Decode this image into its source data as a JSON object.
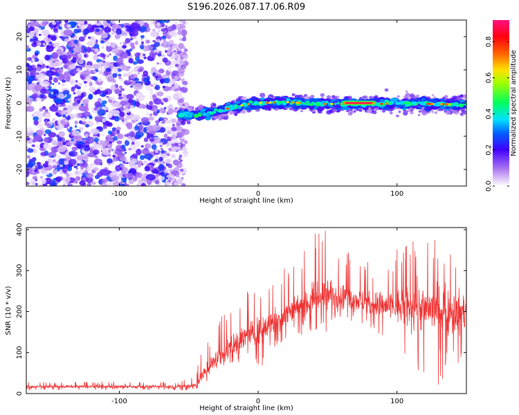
{
  "title": "S196.2026.087.17.06.R09",
  "chart_data": [
    {
      "type": "heatmap",
      "panel": "spectrogram",
      "xlabel": "Height of straight line (km)",
      "ylabel": "Frequency (Hz)",
      "xlim": [
        -167,
        150
      ],
      "ylim": [
        -25,
        25
      ],
      "xticks": [
        -100,
        0,
        100
      ],
      "xtick_labels": [
        "-100",
        "0",
        "100"
      ],
      "yticks": [
        -20,
        -10,
        0,
        10,
        20
      ],
      "ytick_labels": [
        "-20",
        "-10",
        "0",
        "10",
        "20"
      ],
      "colorbar": {
        "label": "Normalized spectral amplitude",
        "range": [
          0.0,
          0.92
        ],
        "ticks": [
          0.0,
          0.2,
          0.4,
          0.6,
          0.8
        ],
        "tick_labels": [
          "0.0",
          "0.2",
          "0.4",
          "0.6",
          "0.8"
        ],
        "colormap": "rainbow (white to purple to blue to cyan to green to yellow to red to magenta)"
      },
      "regions": [
        {
          "description": "diffuse purple noise",
          "x_range": [
            -167,
            -57
          ],
          "frequency_range": [
            -25,
            25
          ],
          "amplitude": "0.0-0.3"
        },
        {
          "description": "signal band",
          "x_range": [
            -57,
            150
          ],
          "center_track": [
            [
              -57,
              -3.5
            ],
            [
              -40,
              -3.5
            ],
            [
              -20,
              -1.5
            ],
            [
              -10,
              -0.5
            ],
            [
              0,
              0
            ],
            [
              20,
              0.3
            ],
            [
              40,
              -0.2
            ],
            [
              60,
              -0.3
            ],
            [
              85,
              -0.3
            ],
            [
              100,
              0
            ],
            [
              150,
              -0.5
            ]
          ],
          "bright_segment": {
            "x_range": [
              60,
              85
            ],
            "frequency": 0,
            "amplitude": 0.9
          }
        }
      ]
    },
    {
      "type": "line",
      "panel": "snr",
      "xlabel": "Height of straight line (km)",
      "ylabel": "SNR (10 * v/v)",
      "xlim": [
        -167,
        150
      ],
      "ylim": [
        0,
        405
      ],
      "xticks": [
        -100,
        0,
        100
      ],
      "xtick_labels": [
        "-100",
        "0",
        "100"
      ],
      "yticks": [
        0,
        100,
        200,
        300,
        400
      ],
      "ytick_labels": [
        "0",
        "100",
        "200",
        "300",
        "400"
      ],
      "series": [
        {
          "name": "SNR",
          "color": "#ee3333",
          "envelope_x": [
            -167,
            -57,
            -45,
            -40,
            -30,
            -20,
            -10,
            0,
            10,
            20,
            30,
            40,
            50,
            60,
            70,
            80,
            90,
            100,
            110,
            120,
            130,
            140,
            150
          ],
          "envelope_mean": [
            17,
            17,
            20,
            45,
            85,
            110,
            135,
            150,
            175,
            195,
            215,
            230,
            240,
            240,
            230,
            220,
            215,
            210,
            210,
            210,
            205,
            200,
            195
          ],
          "envelope_peaks": [
            28,
            30,
            55,
            110,
            170,
            240,
            265,
            245,
            290,
            310,
            340,
            390,
            405,
            370,
            335,
            320,
            330,
            360,
            370,
            385,
            395,
            350,
            370
          ],
          "envelope_troughs": [
            8,
            8,
            8,
            20,
            40,
            60,
            75,
            45,
            110,
            130,
            140,
            150,
            140,
            185,
            170,
            165,
            130,
            100,
            60,
            40,
            20,
            40,
            60
          ]
        }
      ]
    }
  ]
}
